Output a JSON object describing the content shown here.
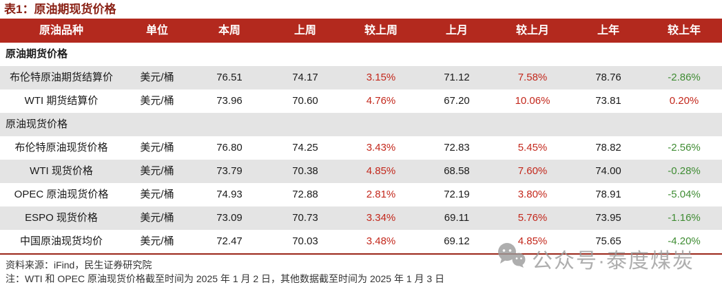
{
  "title": "表1：原油期现货价格",
  "colors": {
    "header_bg": "#b3291e",
    "title_red": "#8a2115",
    "up_red": "#c3271b",
    "down_green": "#3f8c33",
    "stripe_gray": "#e4e4e4",
    "bottom_rule_red": "#9a2518",
    "watermark_gray": "#9b9b9b"
  },
  "table": {
    "columns": [
      "原油品种",
      "单位",
      "本周",
      "上周",
      "较上周",
      "上月",
      "较上月",
      "上年",
      "较上年"
    ],
    "rows": [
      {
        "type": "section",
        "label": "原油期货价格",
        "bold": true
      },
      {
        "type": "data",
        "name": "布伦特原油期货结算价",
        "unit": "美元/桶",
        "values": [
          "76.51",
          "74.17",
          "3.15%",
          "71.12",
          "7.58%",
          "78.76",
          "-2.86%"
        ]
      },
      {
        "type": "data",
        "name": "WTI 期货结算价",
        "unit": "美元/桶",
        "values": [
          "73.96",
          "70.60",
          "4.76%",
          "67.20",
          "10.06%",
          "73.81",
          "0.20%"
        ]
      },
      {
        "type": "section",
        "label": "原油现货价格",
        "bold": false
      },
      {
        "type": "data",
        "name": "布伦特原油现货价格",
        "unit": "美元/桶",
        "values": [
          "76.80",
          "74.25",
          "3.43%",
          "72.83",
          "5.45%",
          "78.82",
          "-2.56%"
        ]
      },
      {
        "type": "data",
        "name": "WTI 现货价格",
        "unit": "美元/桶",
        "values": [
          "73.79",
          "70.38",
          "4.85%",
          "68.58",
          "7.60%",
          "74.00",
          "-0.28%"
        ]
      },
      {
        "type": "data",
        "name": "OPEC 原油现货价格",
        "unit": "美元/桶",
        "values": [
          "74.93",
          "72.88",
          "2.81%",
          "72.19",
          "3.80%",
          "78.91",
          "-5.04%"
        ]
      },
      {
        "type": "data",
        "name": "ESPO 现货价格",
        "unit": "美元/桶",
        "values": [
          "73.09",
          "70.73",
          "3.34%",
          "69.11",
          "5.76%",
          "73.95",
          "-1.16%"
        ]
      },
      {
        "type": "data",
        "name": "中国原油现货均价",
        "unit": "美元/桶",
        "values": [
          "72.47",
          "70.03",
          "3.48%",
          "69.12",
          "4.85%",
          "75.65",
          "-4.20%"
        ]
      }
    ]
  },
  "footer": {
    "source": "资料来源：iFind，民生证券研究院",
    "note": "注：WTI 和 OPEC 原油现货价格截至时间为 2025 年 1 月 2 日，其他数据截至时间为 2025 年 1 月 3 日"
  },
  "watermark": {
    "icon": "wechat-icon",
    "text": "公众号·泰度煤炭"
  }
}
